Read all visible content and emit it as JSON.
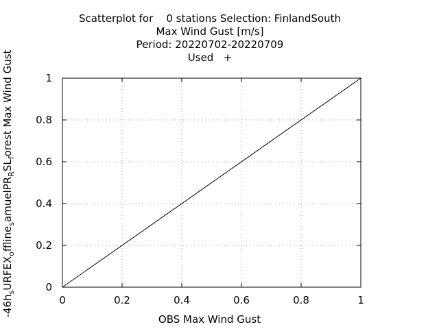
{
  "chart_data": {
    "type": "line",
    "title_lines": [
      "Scatterplot for    0 stations Selection: FinlandSouth",
      "Max Wind Gust [m/s]",
      "Period: 20220702-20220709",
      "Used   +"
    ],
    "xlabel": "OBS Max Wind Gust",
    "ylabel_parts": [
      {
        "text": "-46h",
        "sub": false
      },
      {
        "text": "s",
        "sub": true
      },
      {
        "text": "URFEX",
        "sub": false
      },
      {
        "text": "o",
        "sub": true
      },
      {
        "text": "ffline",
        "sub": false
      },
      {
        "text": "s",
        "sub": true
      },
      {
        "text": "amuelPR",
        "sub": false
      },
      {
        "text": "R",
        "sub": true
      },
      {
        "text": "SL",
        "sub": false
      },
      {
        "text": "f",
        "sub": true
      },
      {
        "text": "orest Max Wind Gust",
        "sub": false
      }
    ],
    "xlim": [
      0,
      1
    ],
    "ylim": [
      0,
      1
    ],
    "x_ticks": [
      "0",
      "0.2",
      "0.4",
      "0.6",
      "0.8",
      "1"
    ],
    "y_ticks": [
      "0",
      "0.2",
      "0.4",
      "0.6",
      "0.8",
      "1"
    ],
    "grid": true,
    "series": [
      {
        "x": [
          0,
          1
        ],
        "y": [
          0,
          1
        ],
        "color": "#000000"
      }
    ]
  }
}
